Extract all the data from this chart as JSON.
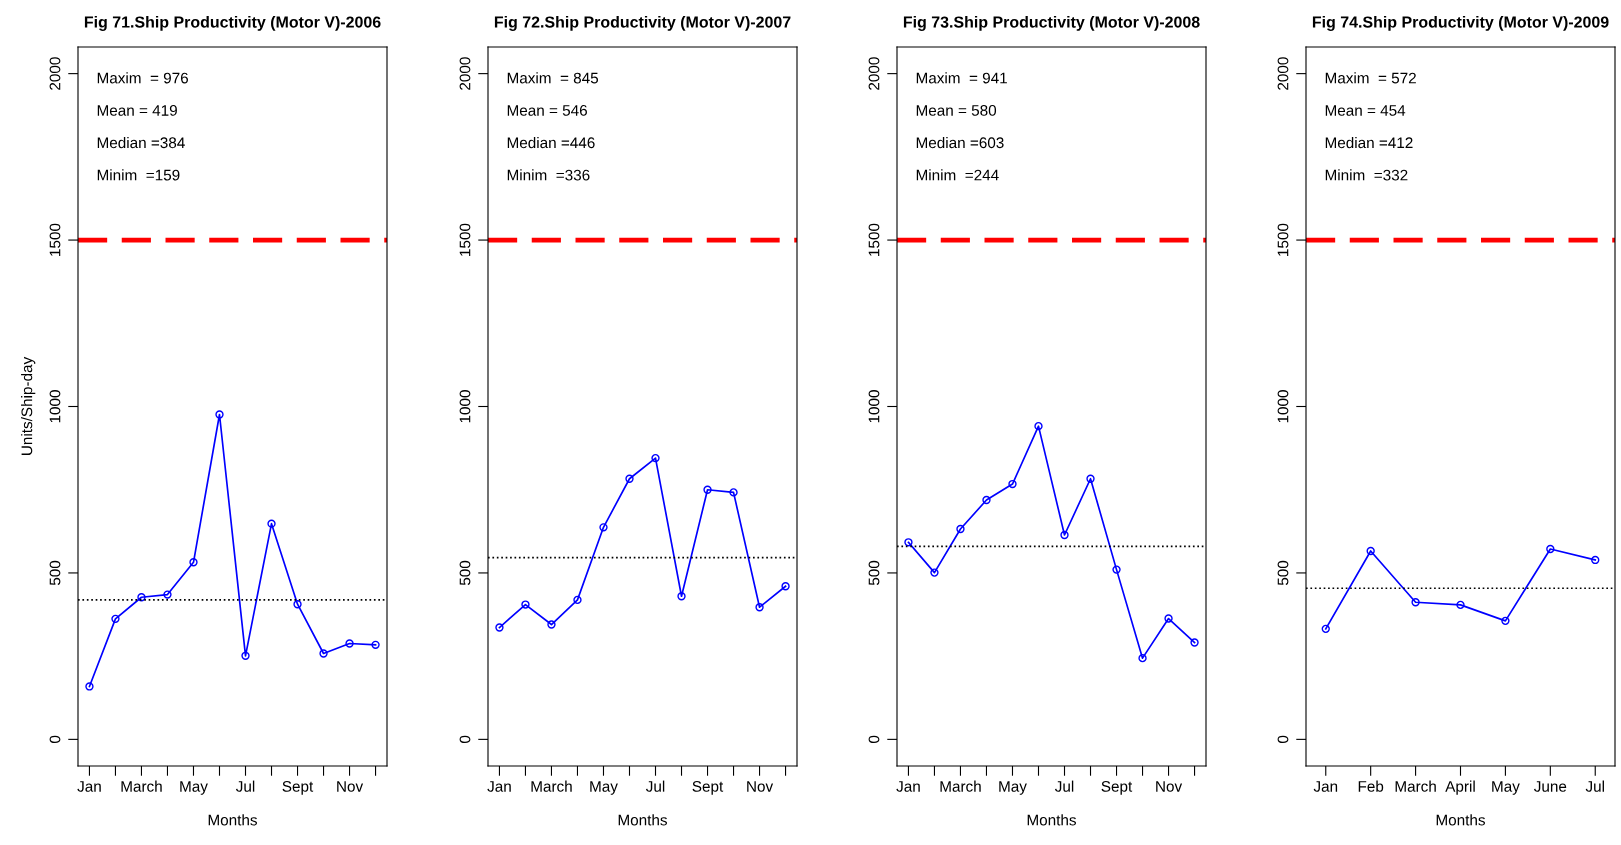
{
  "chart_data": [
    {
      "type": "line",
      "title": "Fig 71.Ship Productivity (Motor V)-2006",
      "xlabel": "Months",
      "ylabel": "Units/Ship-day",
      "categories": [
        "Jan",
        null,
        "March",
        null,
        "May",
        null,
        "Jul",
        null,
        "Sept",
        null,
        "Nov",
        null
      ],
      "series": [
        {
          "color": "#0000ff",
          "values": [
            159,
            362,
            427,
            435,
            532,
            976,
            251,
            648,
            406,
            258,
            288,
            284
          ]
        }
      ],
      "ylim": [
        -80,
        2080
      ],
      "yticks": [
        0,
        500,
        1000,
        1500,
        2000
      ],
      "marker": "circle",
      "line_style": "solid",
      "grid": false,
      "ref_lines": [
        {
          "axis": "y",
          "value": 1500,
          "color": "#ff0000",
          "line_style": "dashed"
        },
        {
          "axis": "y",
          "value": 419,
          "color": "#000000",
          "line_style": "dotted"
        }
      ],
      "annotations": [
        "Maxim  = 976",
        "Mean = 419",
        "Median =384",
        "Minim  =159"
      ]
    },
    {
      "type": "line",
      "title": "Fig 72.Ship Productivity (Motor V)-2007",
      "xlabel": "Months",
      "categories": [
        "Jan",
        null,
        "March",
        null,
        "May",
        null,
        "Jul",
        null,
        "Sept",
        null,
        "Nov",
        null
      ],
      "series": [
        {
          "color": "#0000ff",
          "values": [
            336,
            405,
            345,
            419,
            637,
            783,
            845,
            430,
            750,
            742,
            397,
            460
          ]
        }
      ],
      "ylim": [
        -80,
        2080
      ],
      "yticks": [
        0,
        500,
        1000,
        1500,
        2000
      ],
      "marker": "circle",
      "line_style": "solid",
      "grid": false,
      "ref_lines": [
        {
          "axis": "y",
          "value": 1500,
          "color": "#ff0000",
          "line_style": "dashed"
        },
        {
          "axis": "y",
          "value": 546,
          "color": "#000000",
          "line_style": "dotted"
        }
      ],
      "annotations": [
        "Maxim  = 845",
        "Mean = 546",
        "Median =446",
        "Minim  =336"
      ]
    },
    {
      "type": "line",
      "title": "Fig 73.Ship Productivity (Motor V)-2008",
      "xlabel": "Months",
      "categories": [
        "Jan",
        null,
        "March",
        null,
        "May",
        null,
        "Jul",
        null,
        "Sept",
        null,
        "Nov",
        null
      ],
      "series": [
        {
          "color": "#0000ff",
          "values": [
            592,
            501,
            632,
            719,
            767,
            941,
            614,
            783,
            510,
            244,
            363,
            291
          ]
        }
      ],
      "ylim": [
        -80,
        2080
      ],
      "yticks": [
        0,
        500,
        1000,
        1500,
        2000
      ],
      "marker": "circle",
      "line_style": "solid",
      "grid": false,
      "ref_lines": [
        {
          "axis": "y",
          "value": 1500,
          "color": "#ff0000",
          "line_style": "dashed"
        },
        {
          "axis": "y",
          "value": 580,
          "color": "#000000",
          "line_style": "dotted"
        }
      ],
      "annotations": [
        "Maxim  = 941",
        "Mean = 580",
        "Median =603",
        "Minim  =244"
      ]
    },
    {
      "type": "line",
      "title": "Fig 74.Ship Productivity (Motor V)-2009",
      "xlabel": "Months",
      "categories": [
        "Jan",
        "Feb",
        "March",
        "April",
        "May",
        "June",
        "Jul"
      ],
      "series": [
        {
          "color": "#0000ff",
          "values": [
            332,
            566,
            412,
            404,
            356,
            572,
            539
          ]
        }
      ],
      "ylim": [
        -80,
        2080
      ],
      "yticks": [
        0,
        500,
        1000,
        1500,
        2000
      ],
      "marker": "circle",
      "line_style": "solid",
      "grid": false,
      "ref_lines": [
        {
          "axis": "y",
          "value": 1500,
          "color": "#ff0000",
          "line_style": "dashed"
        },
        {
          "axis": "y",
          "value": 454,
          "color": "#000000",
          "line_style": "dotted"
        }
      ],
      "annotations": [
        "Maxim  = 572",
        "Mean = 454",
        "Median =412",
        "Minim  =332"
      ]
    }
  ]
}
